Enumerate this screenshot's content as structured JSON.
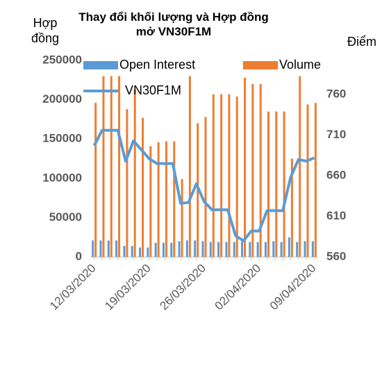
{
  "chart_data": {
    "type": "bar-line",
    "title": "Thay đổi khối lượng và Hợp đồng mở VN30F1M",
    "y_label": "Hợp đồng",
    "y2_label": "Điểm",
    "categories": [
      "12/03/2020",
      null,
      null,
      null,
      null,
      null,
      null,
      "19/03/2020",
      null,
      null,
      null,
      null,
      null,
      null,
      "26/03/2020",
      null,
      null,
      null,
      null,
      null,
      null,
      "02/04/2020",
      null,
      null,
      null,
      null,
      null,
      null,
      "09/04/2020"
    ],
    "series": [
      {
        "name": "Open Interest",
        "type": "bar",
        "color": "#5b9bd5",
        "values": [
          21000,
          21000,
          21000,
          21000,
          14000,
          14000,
          12000,
          12000,
          18000,
          18000,
          18000,
          20000,
          21000,
          21000,
          20000,
          19000,
          19000,
          19000,
          19000,
          20000,
          19000,
          19000,
          19000,
          20000,
          19000,
          25000,
          19000,
          20000,
          20000
        ]
      },
      {
        "name": "Volume",
        "type": "bar",
        "color": "#ed7d31",
        "values": [
          196000,
          230000,
          230000,
          230000,
          188000,
          213000,
          177000,
          141000,
          146000,
          147000,
          147000,
          99000,
          230000,
          170000,
          178000,
          207000,
          207000,
          207000,
          204000,
          228000,
          220000,
          220000,
          185000,
          185000,
          185000,
          125000,
          230000,
          194000,
          196000
        ]
      },
      {
        "name": "VN30F1M",
        "type": "line",
        "axis": "y2",
        "color": "#5b9bd5",
        "values": [
          697,
          716,
          716,
          716,
          678,
          703,
          692,
          681,
          675,
          675,
          675,
          626,
          627,
          650,
          628,
          618,
          618,
          618,
          586,
          580,
          592,
          592,
          617,
          617,
          617,
          658,
          680,
          678,
          682
        ]
      }
    ],
    "ylim": [
      0,
      250000
    ],
    "yticks": [
      0,
      50000,
      100000,
      150000,
      200000,
      250000
    ],
    "y2lim": [
      560,
      802
    ],
    "y2ticks": [
      560,
      610,
      660,
      710,
      760
    ]
  }
}
